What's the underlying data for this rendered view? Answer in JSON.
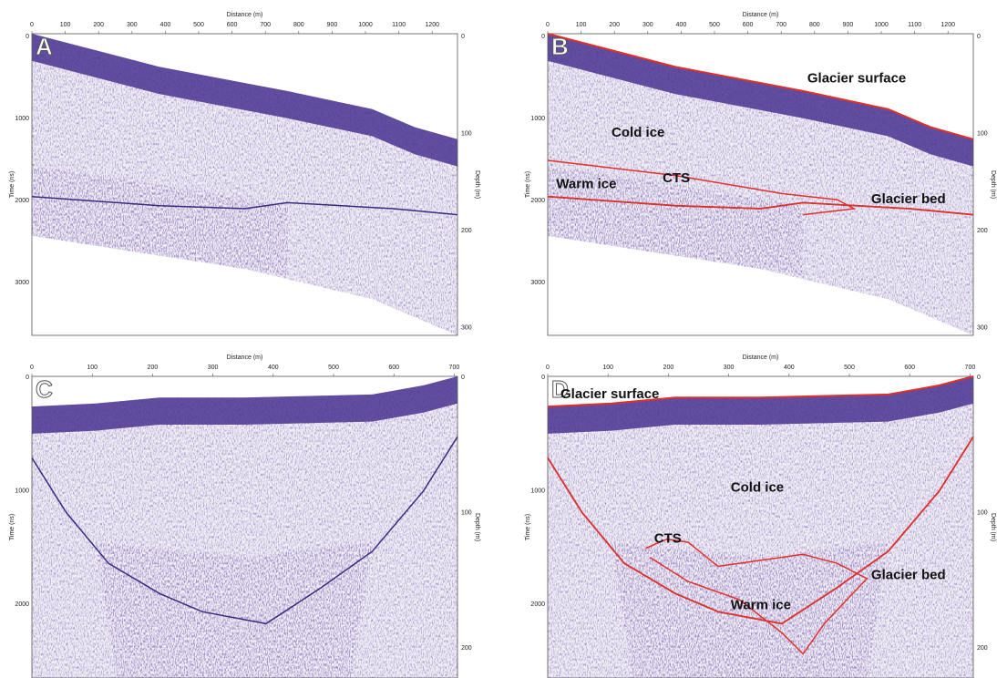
{
  "panels": [
    {
      "label": "A",
      "x_axis": {
        "title": "Distance (m)",
        "ticks": [
          "0",
          "100",
          "200",
          "300",
          "400",
          "500",
          "600",
          "700",
          "800",
          "900",
          "1000",
          "1100",
          "1200"
        ]
      },
      "y_axis": {
        "title": "Time (ns)",
        "ticks": [
          "0",
          "1000",
          "2000",
          "3000"
        ]
      },
      "y2_axis": {
        "title": "Depth (m)",
        "ticks": [
          "0",
          "100",
          "200",
          "300"
        ]
      }
    },
    {
      "label": "B",
      "x_axis": {
        "title": "Distance (m)",
        "ticks": [
          "0",
          "100",
          "200",
          "300",
          "400",
          "500",
          "600",
          "700",
          "800",
          "900",
          "1000",
          "1100",
          "1200"
        ]
      },
      "y_axis": {
        "title": "Time (ns)",
        "ticks": [
          "0",
          "1000",
          "2000",
          "3000"
        ]
      },
      "y2_axis": {
        "title": "Depth (m)",
        "ticks": [
          "0",
          "100",
          "200",
          "300"
        ]
      },
      "annotations": [
        "Glacier surface",
        "Cold ice",
        "CTS",
        "Warm ice",
        "Glacier bed"
      ]
    },
    {
      "label": "C",
      "x_axis": {
        "title": "Distance (m)",
        "ticks": [
          "0",
          "100",
          "200",
          "300",
          "400",
          "500",
          "600",
          "700"
        ]
      },
      "y_axis": {
        "title": "Time (ns)",
        "ticks": [
          "0",
          "1000",
          "2000"
        ]
      },
      "y2_axis": {
        "title": "Depth (m)",
        "ticks": [
          "0",
          "100",
          "200"
        ]
      }
    },
    {
      "label": "D",
      "x_axis": {
        "title": "Distance (m)",
        "ticks": [
          "0",
          "100",
          "200",
          "300",
          "400",
          "500",
          "600",
          "700"
        ]
      },
      "y_axis": {
        "title": "Time (ns)",
        "ticks": [
          "0",
          "1000",
          "2000"
        ]
      },
      "y2_axis": {
        "title": "Depth (m)",
        "ticks": [
          "0",
          "100",
          "200"
        ]
      },
      "annotations": [
        "Glacier surface",
        "Cold ice",
        "CTS",
        "Glacier bed",
        "Warm ice"
      ]
    }
  ]
}
